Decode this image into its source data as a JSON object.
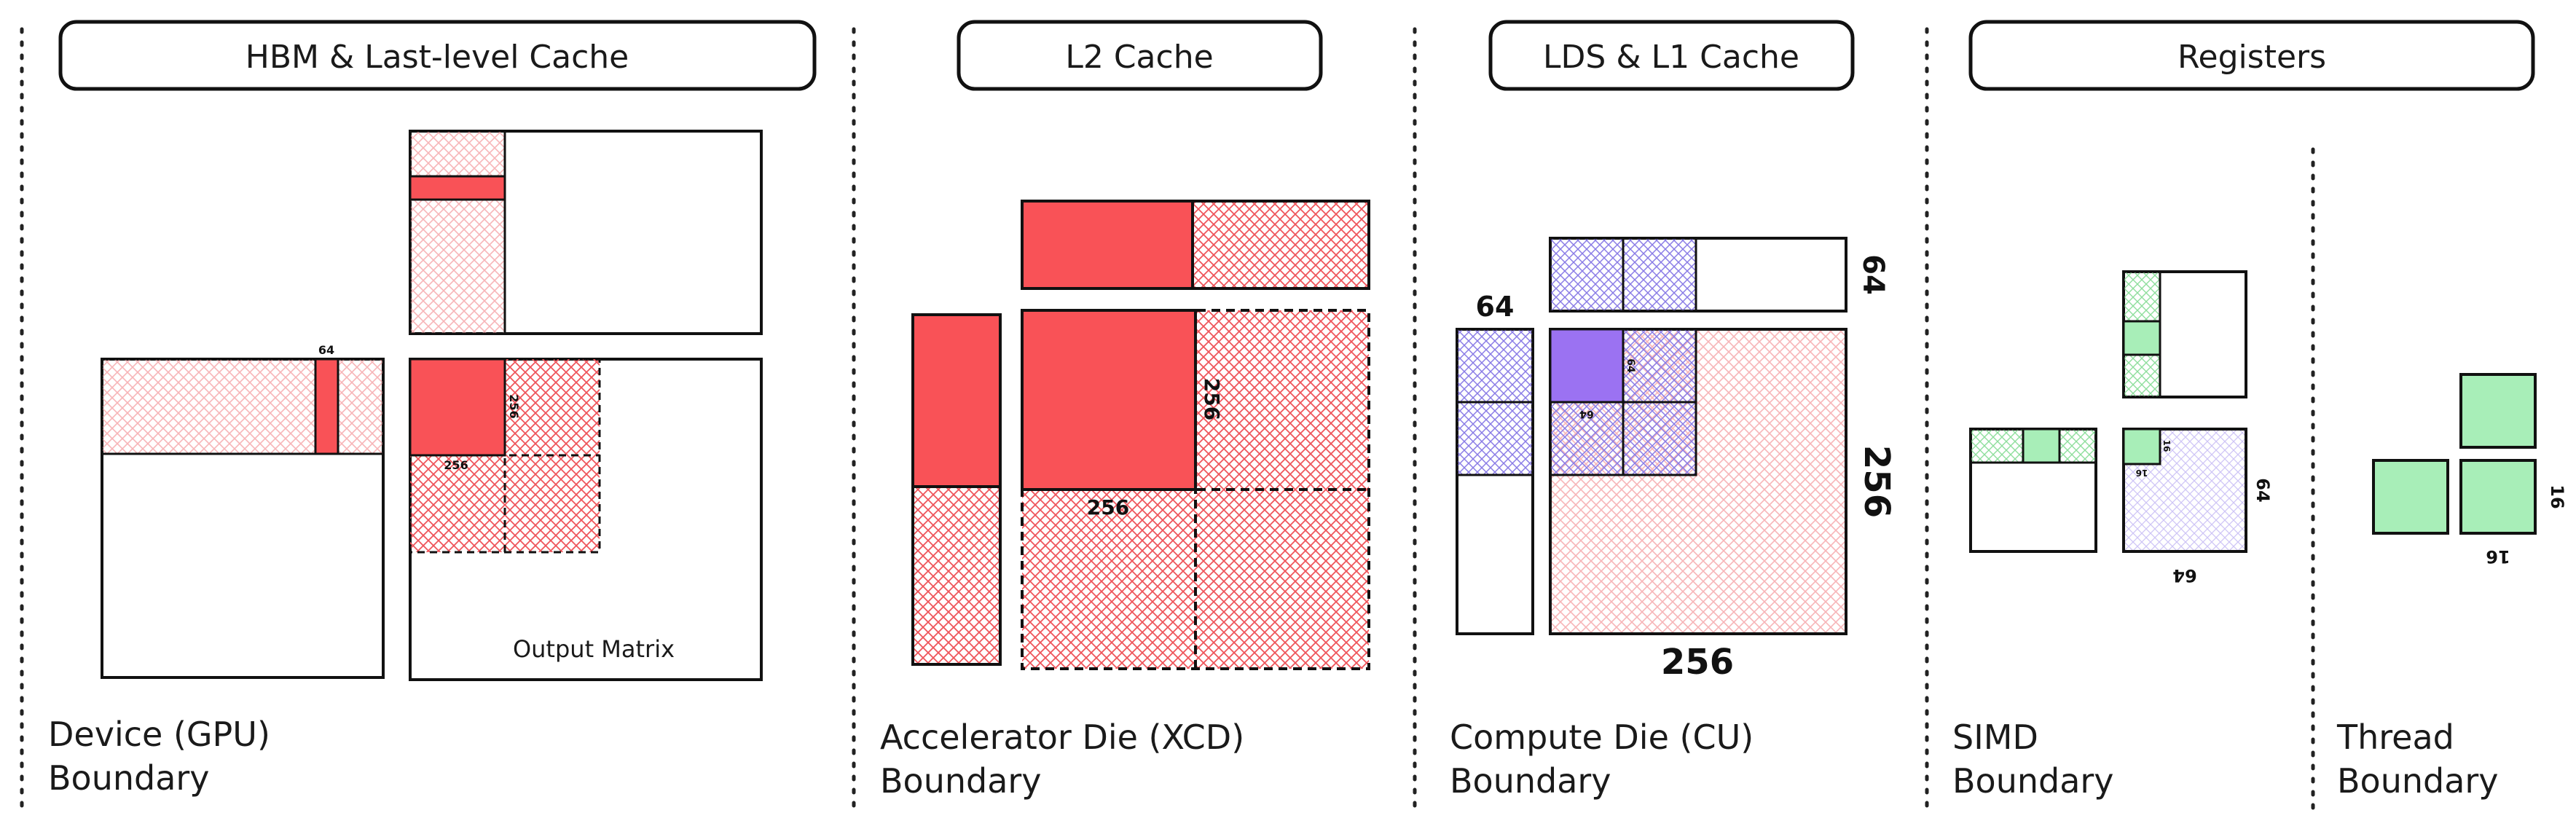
{
  "headers": {
    "hbm": "HBM & Last-level Cache",
    "l2": "L2 Cache",
    "lds": "LDS & L1 Cache",
    "registers": "Registers"
  },
  "boundaries": {
    "device": [
      "Device (GPU)",
      "Boundary"
    ],
    "xcd": [
      "Accelerator Die (XCD)",
      "Boundary"
    ],
    "cu": [
      "Compute Die (CU)",
      "Boundary"
    ],
    "simd": [
      "SIMD",
      "Boundary"
    ],
    "thread": [
      "Thread",
      "Boundary"
    ]
  },
  "labels": {
    "output_matrix": "Output Matrix"
  },
  "dims": {
    "d64": "64",
    "d256": "256",
    "d16": "16"
  },
  "colors": {
    "red": "#f95257",
    "red_hatch_light": "#f9a3a6",
    "red_hatch_dark": "#e8333a",
    "purple": "#9b72f2",
    "purple_hatch": "#7a6ae0",
    "green": "#a8eeb8",
    "green_hatch": "#7fd98f",
    "stroke": "#111111"
  }
}
